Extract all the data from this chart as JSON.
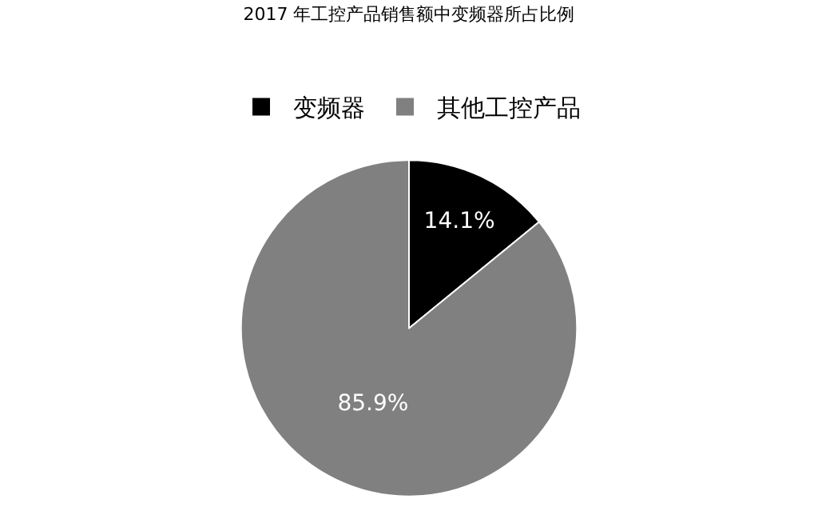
{
  "chart_data": {
    "type": "pie",
    "title": "2017 年工控产品销售额中变频器所占比例",
    "categories": [
      "变频器",
      "其他工控产品"
    ],
    "values": [
      14.1,
      85.9
    ],
    "colors": [
      "#000000",
      "#808080"
    ],
    "value_labels": [
      "14.1%",
      "85.9%"
    ],
    "legend": "top"
  }
}
